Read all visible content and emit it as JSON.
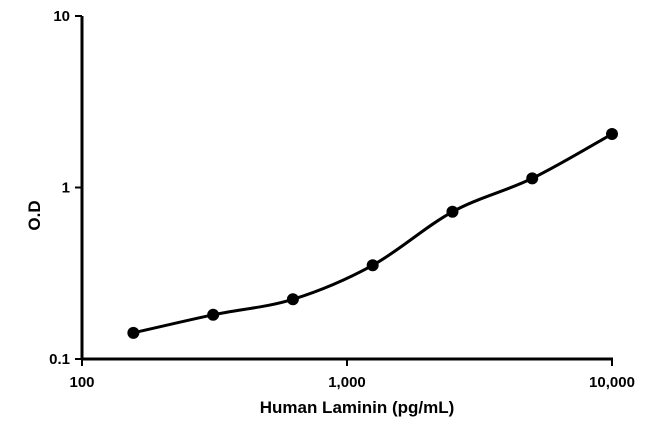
{
  "chart_data": {
    "type": "line",
    "title": "",
    "xlabel": "Human Laminin (pg/mL)",
    "ylabel": "O.D",
    "x_scale": "log",
    "y_scale": "log",
    "xlim": [
      100,
      10000
    ],
    "ylim": [
      0.1,
      10
    ],
    "x_ticks": [
      100,
      1000,
      10000
    ],
    "x_tick_labels": [
      "100",
      "1,000",
      "10,000"
    ],
    "y_ticks": [
      0.1,
      1,
      10
    ],
    "y_tick_labels": [
      "0.1",
      "1",
      "10"
    ],
    "grid": false,
    "legend": "none",
    "series": [
      {
        "x": [
          156.25,
          312.5,
          625,
          1250,
          2500,
          5000,
          10000
        ],
        "y": [
          0.142,
          0.181,
          0.223,
          0.352,
          0.722,
          1.13,
          2.05
        ],
        "color": "#000000",
        "marker": "circle"
      }
    ]
  }
}
